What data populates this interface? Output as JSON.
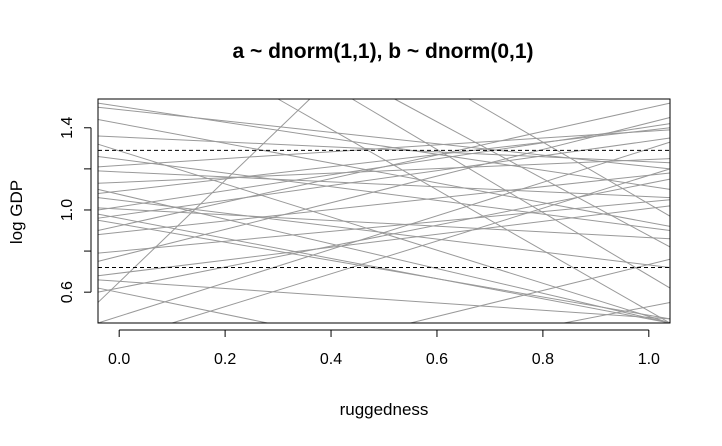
{
  "chart_data": {
    "type": "line",
    "title": "a ~ dnorm(1,1), b ~ dnorm(0,1)",
    "xlabel": "ruggedness",
    "ylabel": "log GDP",
    "xlim": [
      -0.04,
      1.04
    ],
    "ylim": [
      0.45,
      1.54
    ],
    "x_ticks": [
      0.0,
      0.2,
      0.4,
      0.6,
      0.8,
      1.0
    ],
    "x_tick_labels": [
      "0.0",
      "0.2",
      "0.4",
      "0.6",
      "0.8",
      "1.0"
    ],
    "y_ticks": [
      0.6,
      0.8,
      1.0,
      1.2,
      1.4
    ],
    "y_tick_labels": {
      "0.6": "0.6",
      "1.0": "1.0",
      "1.4": "1.4"
    },
    "grid": false,
    "reference_lines": [
      {
        "y": 1.29,
        "style": "dashed",
        "color": "#000000"
      },
      {
        "y": 0.72,
        "style": "dashed",
        "color": "#000000"
      }
    ],
    "line_color": "#999999",
    "series": [
      {
        "x": [
          -0.04,
          1.04
        ],
        "y": [
          1.0,
          1.42
        ]
      },
      {
        "x": [
          -0.04,
          1.04
        ],
        "y": [
          1.08,
          1.4
        ]
      },
      {
        "x": [
          -0.04,
          1.04
        ],
        "y": [
          1.13,
          1.25
        ]
      },
      {
        "x": [
          -0.04,
          1.04
        ],
        "y": [
          0.96,
          1.35
        ]
      },
      {
        "x": [
          -0.04,
          1.04
        ],
        "y": [
          0.88,
          1.18
        ]
      },
      {
        "x": [
          -0.04,
          1.04
        ],
        "y": [
          0.79,
          1.05
        ]
      },
      {
        "x": [
          -0.04,
          1.04
        ],
        "y": [
          0.68,
          1.02
        ]
      },
      {
        "x": [
          -0.04,
          1.04
        ],
        "y": [
          1.36,
          1.23
        ]
      },
      {
        "x": [
          -0.04,
          1.04
        ],
        "y": [
          1.19,
          1.06
        ]
      },
      {
        "x": [
          -0.04,
          1.04
        ],
        "y": [
          1.01,
          0.86
        ]
      },
      {
        "x": [
          -0.04,
          1.04
        ],
        "y": [
          0.6,
          1.15
        ]
      },
      {
        "x": [
          -0.04,
          1.04
        ],
        "y": [
          1.26,
          0.9
        ]
      },
      {
        "x": [
          -0.04,
          1.04
        ],
        "y": [
          1.52,
          1.1
        ]
      },
      {
        "x": [
          -0.04,
          1.04
        ],
        "y": [
          1.44,
          0.92
        ]
      },
      {
        "x": [
          -0.04,
          1.04
        ],
        "y": [
          1.32,
          0.45
        ]
      },
      {
        "x": [
          -0.04,
          1.04
        ],
        "y": [
          1.1,
          0.45
        ]
      },
      {
        "x": [
          -0.04,
          1.04
        ],
        "y": [
          0.98,
          0.45
        ]
      },
      {
        "x": [
          -0.04,
          1.04
        ],
        "y": [
          0.95,
          0.47
        ]
      },
      {
        "x": [
          -0.04,
          1.04
        ],
        "y": [
          1.21,
          1.39
        ]
      },
      {
        "x": [
          -0.04,
          1.04
        ],
        "y": [
          0.45,
          1.33
        ]
      },
      {
        "x": [
          -0.04,
          1.04
        ],
        "y": [
          0.75,
          1.45
        ]
      },
      {
        "x": [
          -0.04,
          1.04
        ],
        "y": [
          0.9,
          1.52
        ]
      },
      {
        "x": [
          -0.04,
          1.04
        ],
        "y": [
          1.5,
          1.2
        ]
      },
      {
        "x": [
          -0.04,
          1.04
        ],
        "y": [
          1.06,
          0.72
        ]
      },
      {
        "x": [
          -0.04,
          1.04
        ],
        "y": [
          0.66,
          0.47
        ]
      },
      {
        "x": [
          0.1,
          1.04
        ],
        "y": [
          0.45,
          1.2
        ]
      },
      {
        "x": [
          0.3,
          1.04
        ],
        "y": [
          1.54,
          0.45
        ]
      },
      {
        "x": [
          0.44,
          1.04
        ],
        "y": [
          1.54,
          0.62
        ]
      },
      {
        "x": [
          0.52,
          1.04
        ],
        "y": [
          1.54,
          0.82
        ]
      },
      {
        "x": [
          0.66,
          1.04
        ],
        "y": [
          1.54,
          0.97
        ]
      },
      {
        "x": [
          -0.04,
          0.36
        ],
        "y": [
          0.55,
          1.54
        ]
      },
      {
        "x": [
          -0.04,
          0.28
        ],
        "y": [
          0.62,
          0.45
        ]
      },
      {
        "x": [
          0.84,
          1.04
        ],
        "y": [
          0.45,
          0.55
        ]
      },
      {
        "x": [
          0.55,
          1.04
        ],
        "y": [
          0.45,
          0.76
        ]
      }
    ]
  }
}
